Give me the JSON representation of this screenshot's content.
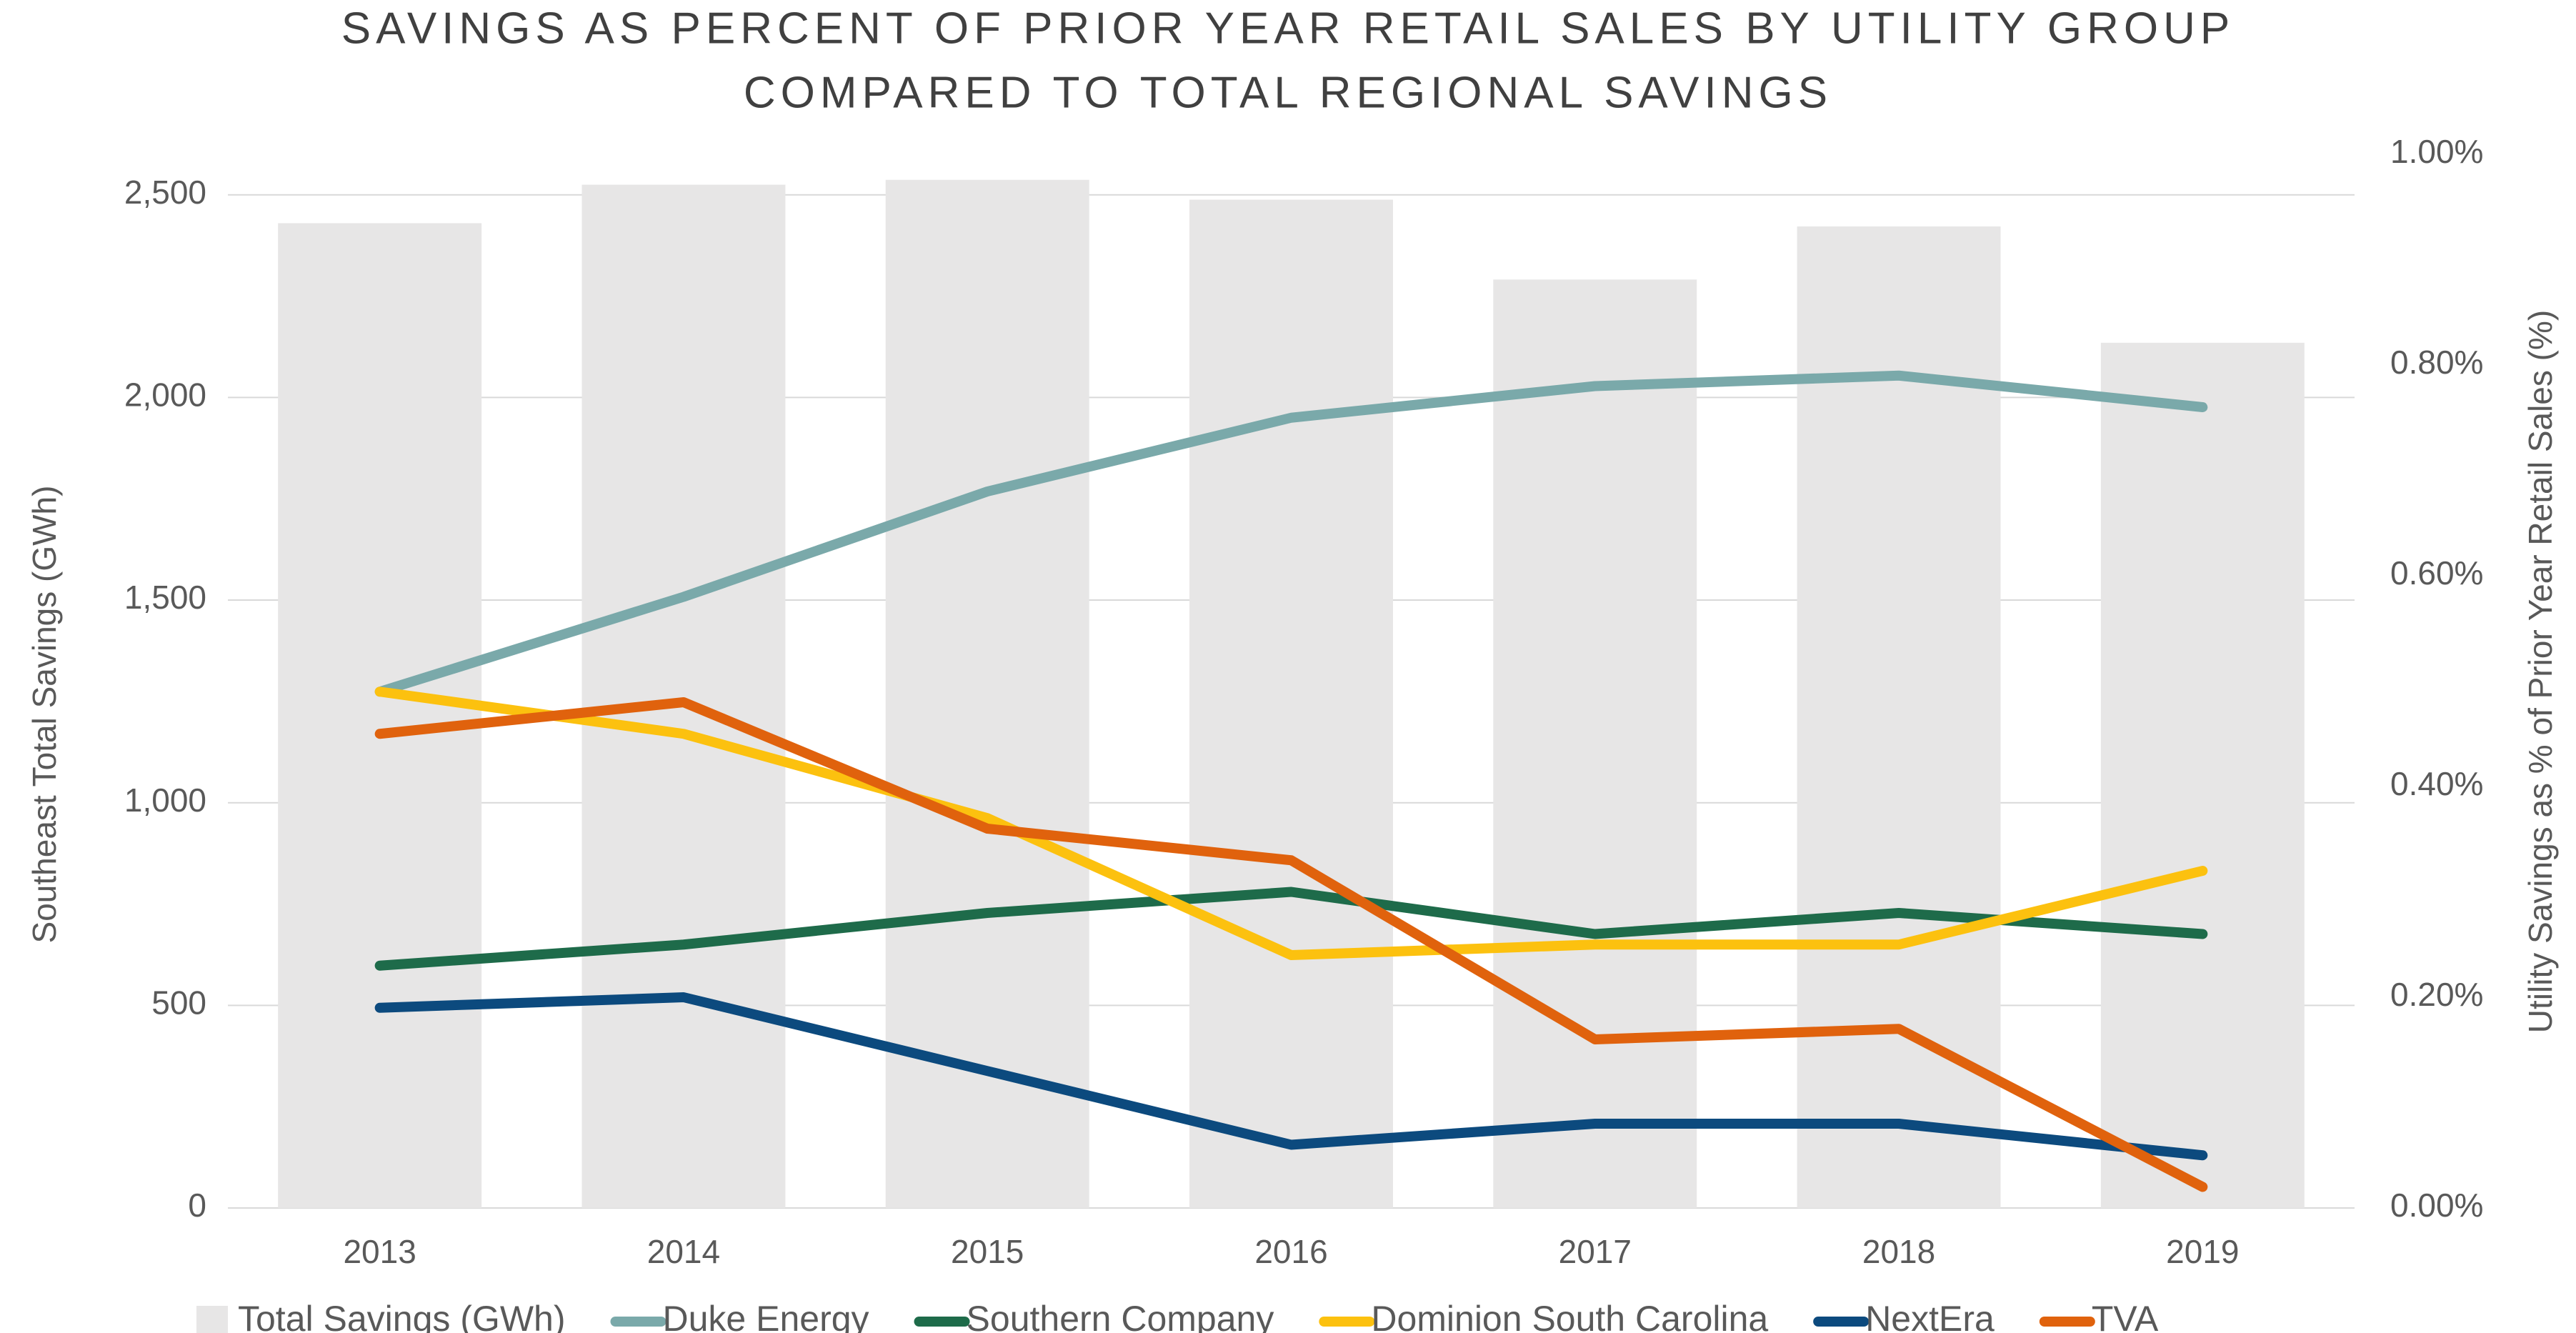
{
  "chart_data": {
    "type": "bar",
    "title": [
      "SAVINGS AS PERCENT OF PRIOR YEAR RETAIL SALES BY UTILITY GROUP",
      "COMPARED TO TOTAL REGIONAL SAVINGS"
    ],
    "ylabel": "Southeast Total Savings (GWh)",
    "y2label": "Utility Savings as % of Prior Year Retail Sales (%)",
    "categories": [
      "2013",
      "2014",
      "2015",
      "2016",
      "2017",
      "2018",
      "2019"
    ],
    "ylim": [
      0,
      2600
    ],
    "yticks": [
      0,
      500,
      {
        "value": 1000,
        "label": "1,000"
      },
      {
        "value": 1500,
        "label": "1,500"
      },
      {
        "value": 2000,
        "label": "2,000"
      },
      {
        "value": 2500,
        "label": "2,500"
      }
    ],
    "y2lim": [
      0,
      1
    ],
    "y2ticks": [
      {
        "value": 0,
        "label": "0.00%"
      },
      {
        "value": 0.2,
        "label": "0.20%"
      },
      {
        "value": 0.4,
        "label": "0.40%"
      },
      {
        "value": 0.6,
        "label": "0.60%"
      },
      {
        "value": 0.8,
        "label": "0.80%"
      },
      {
        "value": 1,
        "label": "1.00%"
      }
    ],
    "grid": true,
    "legend": "bottom",
    "series": [
      {
        "name": "Total Savings (GWh)",
        "type": "bar",
        "color": "#e7e6e6",
        "values": [
          2430,
          2525,
          2537,
          2488,
          2291,
          2422,
          2135
        ]
      },
      {
        "name": "Duke Energy",
        "type": "line",
        "axis": "y2",
        "color": "#7aa9aa",
        "values": [
          0.49,
          0.58,
          0.68,
          0.75,
          0.78,
          0.79,
          0.76
        ]
      },
      {
        "name": "Southern Company",
        "type": "line",
        "axis": "y2",
        "color": "#1e6b4a",
        "values": [
          0.23,
          0.25,
          0.28,
          0.3,
          0.26,
          0.28,
          0.26
        ]
      },
      {
        "name": "Dominion South Carolina",
        "type": "line",
        "axis": "y2",
        "color": "#fcc10f",
        "values": [
          0.49,
          0.45,
          0.37,
          0.24,
          0.25,
          0.25,
          0.32
        ]
      },
      {
        "name": "NextEra",
        "type": "line",
        "axis": "y2",
        "color": "#0c4a7e",
        "values": [
          0.19,
          0.2,
          0.13,
          0.06,
          0.08,
          0.08,
          0.05
        ]
      },
      {
        "name": "TVA",
        "type": "line",
        "axis": "y2",
        "color": "#e0620d",
        "values": [
          0.45,
          0.48,
          0.36,
          0.33,
          0.16,
          0.17,
          0.02
        ]
      }
    ]
  }
}
